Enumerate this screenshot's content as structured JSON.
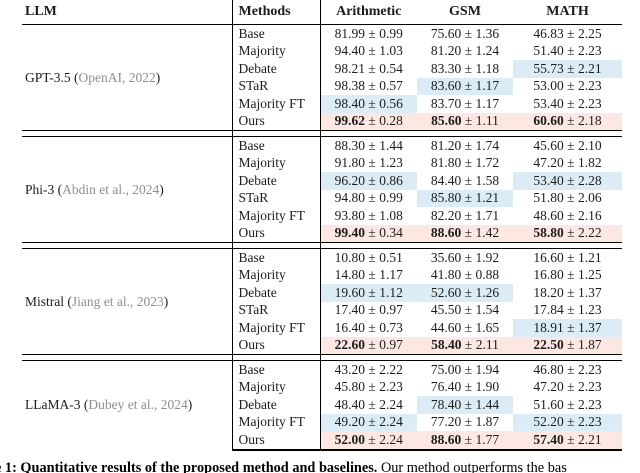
{
  "table": {
    "pm": "±",
    "header": {
      "llm": "LLM",
      "methods": "Methods",
      "arithmetic": "Arithmetic",
      "gsm": "GSM",
      "math": "MATH"
    },
    "colors": {
      "second_best_highlight": "#dcecf6",
      "best_highlight": "#fce7e3",
      "citation_gray": "#8f8f8f"
    },
    "groups": [
      {
        "llm": "GPT-3.5",
        "cite": "OpenAI, 2022",
        "rows": [
          {
            "method": "Base",
            "best": false,
            "cells": [
              {
                "m": "81.99",
                "e": "0.99",
                "hl": ""
              },
              {
                "m": "75.60",
                "e": "1.36",
                "hl": ""
              },
              {
                "m": "46.83",
                "e": "2.25",
                "hl": ""
              }
            ]
          },
          {
            "method": "Majority",
            "best": false,
            "cells": [
              {
                "m": "94.40",
                "e": "1.03",
                "hl": ""
              },
              {
                "m": "81.20",
                "e": "1.24",
                "hl": ""
              },
              {
                "m": "51.40",
                "e": "2.23",
                "hl": ""
              }
            ]
          },
          {
            "method": "Debate",
            "best": false,
            "cells": [
              {
                "m": "98.21",
                "e": "0.54",
                "hl": ""
              },
              {
                "m": "83.30",
                "e": "1.18",
                "hl": ""
              },
              {
                "m": "55.73",
                "e": "2.21",
                "hl": "blue"
              }
            ]
          },
          {
            "method": "STaR",
            "best": false,
            "cells": [
              {
                "m": "98.38",
                "e": "0.57",
                "hl": ""
              },
              {
                "m": "83.60",
                "e": "1.17",
                "hl": "blue"
              },
              {
                "m": "53.00",
                "e": "2.23",
                "hl": ""
              }
            ]
          },
          {
            "method": "Majority FT",
            "best": false,
            "cells": [
              {
                "m": "98.40",
                "e": "0.56",
                "hl": "blue"
              },
              {
                "m": "83.70",
                "e": "1.17",
                "hl": ""
              },
              {
                "m": "53.40",
                "e": "2.23",
                "hl": ""
              }
            ]
          },
          {
            "method": "Ours",
            "best": true,
            "cells": [
              {
                "m": "99.62",
                "e": "0.28",
                "hl": "pink"
              },
              {
                "m": "85.60",
                "e": "1.11",
                "hl": "pink"
              },
              {
                "m": "60.60",
                "e": "2.18",
                "hl": "pink"
              }
            ]
          }
        ]
      },
      {
        "llm": "Phi-3",
        "cite": "Abdin et al., 2024",
        "rows": [
          {
            "method": "Base",
            "best": false,
            "cells": [
              {
                "m": "88.30",
                "e": "1.44",
                "hl": ""
              },
              {
                "m": "81.20",
                "e": "1.74",
                "hl": ""
              },
              {
                "m": "45.60",
                "e": "2.10",
                "hl": ""
              }
            ]
          },
          {
            "method": "Majority",
            "best": false,
            "cells": [
              {
                "m": "91.80",
                "e": "1.23",
                "hl": ""
              },
              {
                "m": "81.80",
                "e": "1.72",
                "hl": ""
              },
              {
                "m": "47.20",
                "e": "1.82",
                "hl": ""
              }
            ]
          },
          {
            "method": "Debate",
            "best": false,
            "cells": [
              {
                "m": "96.20",
                "e": "0.86",
                "hl": "blue"
              },
              {
                "m": "84.40",
                "e": "1.58",
                "hl": ""
              },
              {
                "m": "53.40",
                "e": "2.28",
                "hl": "blue"
              }
            ]
          },
          {
            "method": "STaR",
            "best": false,
            "cells": [
              {
                "m": "94.80",
                "e": "0.99",
                "hl": ""
              },
              {
                "m": "85.80",
                "e": "1.21",
                "hl": "blue"
              },
              {
                "m": "51.80",
                "e": "2.06",
                "hl": ""
              }
            ]
          },
          {
            "method": "Majority FT",
            "best": false,
            "cells": [
              {
                "m": "93.80",
                "e": "1.08",
                "hl": ""
              },
              {
                "m": "82.20",
                "e": "1.71",
                "hl": ""
              },
              {
                "m": "48.60",
                "e": "2.16",
                "hl": ""
              }
            ]
          },
          {
            "method": "Ours",
            "best": true,
            "cells": [
              {
                "m": "99.40",
                "e": "0.34",
                "hl": "pink"
              },
              {
                "m": "88.60",
                "e": "1.42",
                "hl": "pink"
              },
              {
                "m": "58.80",
                "e": "2.22",
                "hl": "pink"
              }
            ]
          }
        ]
      },
      {
        "llm": "Mistral",
        "cite": "Jiang et al., 2023",
        "rows": [
          {
            "method": "Base",
            "best": false,
            "cells": [
              {
                "m": "10.80",
                "e": "0.51",
                "hl": ""
              },
              {
                "m": "35.60",
                "e": "1.92",
                "hl": ""
              },
              {
                "m": "16.60",
                "e": "1.21",
                "hl": ""
              }
            ]
          },
          {
            "method": "Majority",
            "best": false,
            "cells": [
              {
                "m": "14.80",
                "e": "1.17",
                "hl": ""
              },
              {
                "m": "41.80",
                "e": "0.88",
                "hl": ""
              },
              {
                "m": "16.80",
                "e": "1.25",
                "hl": ""
              }
            ]
          },
          {
            "method": "Debate",
            "best": false,
            "cells": [
              {
                "m": "19.60",
                "e": "1.12",
                "hl": "blue"
              },
              {
                "m": "52.60",
                "e": "1.26",
                "hl": "blue"
              },
              {
                "m": "18.20",
                "e": "1.37",
                "hl": ""
              }
            ]
          },
          {
            "method": "STaR",
            "best": false,
            "cells": [
              {
                "m": "17.40",
                "e": "0.97",
                "hl": ""
              },
              {
                "m": "45.50",
                "e": "1.54",
                "hl": ""
              },
              {
                "m": "17.84",
                "e": "1.23",
                "hl": ""
              }
            ]
          },
          {
            "method": "Majority FT",
            "best": false,
            "cells": [
              {
                "m": "16.40",
                "e": "0.73",
                "hl": ""
              },
              {
                "m": "44.60",
                "e": "1.65",
                "hl": ""
              },
              {
                "m": "18.91",
                "e": "1.37",
                "hl": "blue"
              }
            ]
          },
          {
            "method": "Ours",
            "best": true,
            "cells": [
              {
                "m": "22.60",
                "e": "0.97",
                "hl": "pink"
              },
              {
                "m": "58.40",
                "e": "2.11",
                "hl": "pink"
              },
              {
                "m": "22.50",
                "e": "1.87",
                "hl": "pink"
              }
            ]
          }
        ]
      },
      {
        "llm": "LLaMA-3",
        "cite": "Dubey et al., 2024",
        "rows": [
          {
            "method": "Base",
            "best": false,
            "cells": [
              {
                "m": "43.20",
                "e": "2.22",
                "hl": ""
              },
              {
                "m": "75.00",
                "e": "1.94",
                "hl": ""
              },
              {
                "m": "46.80",
                "e": "2.23",
                "hl": ""
              }
            ]
          },
          {
            "method": "Majority",
            "best": false,
            "cells": [
              {
                "m": "45.80",
                "e": "2.23",
                "hl": ""
              },
              {
                "m": "76.40",
                "e": "1.90",
                "hl": ""
              },
              {
                "m": "47.20",
                "e": "2.23",
                "hl": ""
              }
            ]
          },
          {
            "method": "Debate",
            "best": false,
            "cells": [
              {
                "m": "48.40",
                "e": "2.24",
                "hl": ""
              },
              {
                "m": "78.40",
                "e": "1.44",
                "hl": "blue"
              },
              {
                "m": "51.60",
                "e": "2.23",
                "hl": ""
              }
            ]
          },
          {
            "method": "Majority FT",
            "best": false,
            "cells": [
              {
                "m": "49.20",
                "e": "2.24",
                "hl": "blue"
              },
              {
                "m": "77.20",
                "e": "1.87",
                "hl": ""
              },
              {
                "m": "52.20",
                "e": "2.23",
                "hl": "blue"
              }
            ]
          },
          {
            "method": "Ours",
            "best": true,
            "cells": [
              {
                "m": "52.00",
                "e": "2.24",
                "hl": "pink"
              },
              {
                "m": "88.60",
                "e": "1.77",
                "hl": "pink"
              },
              {
                "m": "57.40",
                "e": "2.21",
                "hl": "pink"
              }
            ]
          }
        ]
      }
    ]
  },
  "caption": {
    "prefix": "e 1:",
    "bold": "Quantitative results of the proposed method and baselines.",
    "rest": "Our method outperforms the bas"
  }
}
